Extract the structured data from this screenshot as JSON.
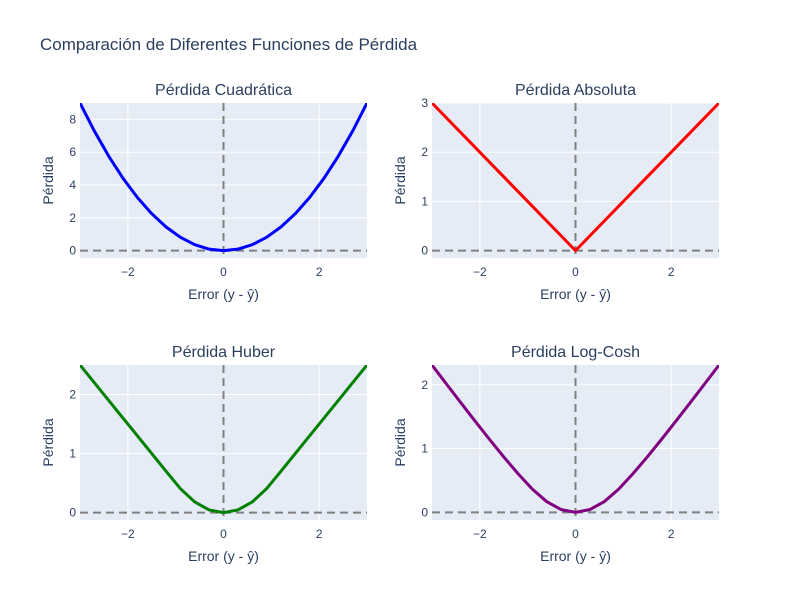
{
  "title": "Comparación de Diferentes Funciones de Pérdida",
  "colors": {
    "plot_background": "#e5ecf6",
    "grid": "#ffffff",
    "reference_lines": "#808080",
    "text": "#2a3f5f"
  },
  "chart_data": [
    {
      "type": "line",
      "title": "Pérdida Cuadrática",
      "xlabel": "Error (y - ŷ)",
      "ylabel": "Pérdida",
      "xlim": [
        -3,
        3
      ],
      "ylim": [
        -0.45,
        9.0
      ],
      "xticks": [
        -2,
        0,
        2
      ],
      "xtick_labels": [
        "−2",
        "0",
        "2"
      ],
      "yticks": [
        0,
        2,
        4,
        6,
        8
      ],
      "ytick_labels": [
        "0",
        "2",
        "4",
        "6",
        "8"
      ],
      "grid": true,
      "reference_lines": {
        "x": 0,
        "y": 0,
        "style": "dashed"
      },
      "series": [
        {
          "color": "#0000ff",
          "x": [
            -3,
            -2.7,
            -2.4,
            -2.1,
            -1.8,
            -1.5,
            -1.2,
            -0.9,
            -0.6,
            -0.3,
            0,
            0.3,
            0.6,
            0.9,
            1.2,
            1.5,
            1.8,
            2.1,
            2.4,
            2.7,
            3
          ],
          "y": [
            9,
            7.29,
            5.76,
            4.41,
            3.24,
            2.25,
            1.44,
            0.81,
            0.36,
            0.09,
            0,
            0.09,
            0.36,
            0.81,
            1.44,
            2.25,
            3.24,
            4.41,
            5.76,
            7.29,
            9
          ]
        }
      ]
    },
    {
      "type": "line",
      "title": "Pérdida Absoluta",
      "xlabel": "Error (y - ŷ)",
      "ylabel": "Pérdida",
      "xlim": [
        -3,
        3
      ],
      "ylim": [
        -0.15,
        3.0
      ],
      "xticks": [
        -2,
        0,
        2
      ],
      "xtick_labels": [
        "−2",
        "0",
        "2"
      ],
      "yticks": [
        0,
        1,
        2,
        3
      ],
      "ytick_labels": [
        "0",
        "1",
        "2",
        "3"
      ],
      "grid": true,
      "reference_lines": {
        "x": 0,
        "y": 0,
        "style": "dashed"
      },
      "series": [
        {
          "color": "#ff0000",
          "x": [
            -3,
            0,
            3
          ],
          "y": [
            3,
            0,
            3
          ]
        }
      ]
    },
    {
      "type": "line",
      "title": "Pérdida Huber",
      "xlabel": "Error (y - ŷ)",
      "ylabel": "Pérdida",
      "xlim": [
        -3,
        3
      ],
      "ylim": [
        -0.125,
        2.5
      ],
      "xticks": [
        -2,
        0,
        2
      ],
      "xtick_labels": [
        "−2",
        "0",
        "2"
      ],
      "yticks": [
        0,
        1,
        2
      ],
      "ytick_labels": [
        "0",
        "1",
        "2"
      ],
      "grid": true,
      "reference_lines": {
        "x": 0,
        "y": 0,
        "style": "dashed"
      },
      "series": [
        {
          "color": "#008000",
          "x": [
            -3,
            -2.7,
            -2.4,
            -2.1,
            -1.8,
            -1.5,
            -1.2,
            -0.9,
            -0.6,
            -0.3,
            0,
            0.3,
            0.6,
            0.9,
            1.2,
            1.5,
            1.8,
            2.1,
            2.4,
            2.7,
            3
          ],
          "y": [
            2.5,
            2.2,
            1.9,
            1.6,
            1.3,
            1.0,
            0.7,
            0.405,
            0.18,
            0.045,
            0,
            0.045,
            0.18,
            0.405,
            0.7,
            1.0,
            1.3,
            1.6,
            1.9,
            2.2,
            2.5
          ]
        }
      ]
    },
    {
      "type": "line",
      "title": "Pérdida Log-Cosh",
      "xlabel": "Error (y - ŷ)",
      "ylabel": "Pérdida",
      "xlim": [
        -3,
        3
      ],
      "ylim": [
        -0.12,
        2.31
      ],
      "xticks": [
        -2,
        0,
        2
      ],
      "xtick_labels": [
        "−2",
        "0",
        "2"
      ],
      "yticks": [
        0,
        1,
        2
      ],
      "ytick_labels": [
        "0",
        "1",
        "2"
      ],
      "grid": true,
      "reference_lines": {
        "x": 0,
        "y": 0,
        "style": "dashed"
      },
      "series": [
        {
          "color": "#800080",
          "x": [
            -3,
            -2.7,
            -2.4,
            -2.1,
            -1.8,
            -1.5,
            -1.2,
            -0.9,
            -0.6,
            -0.3,
            0,
            0.3,
            0.6,
            0.9,
            1.2,
            1.5,
            1.8,
            2.1,
            2.4,
            2.7,
            3
          ],
          "y": [
            2.309,
            2.014,
            1.721,
            1.431,
            1.146,
            0.869,
            0.605,
            0.362,
            0.167,
            0.044,
            0,
            0.044,
            0.167,
            0.362,
            0.605,
            0.869,
            1.146,
            1.431,
            1.721,
            2.014,
            2.309
          ]
        }
      ]
    }
  ]
}
